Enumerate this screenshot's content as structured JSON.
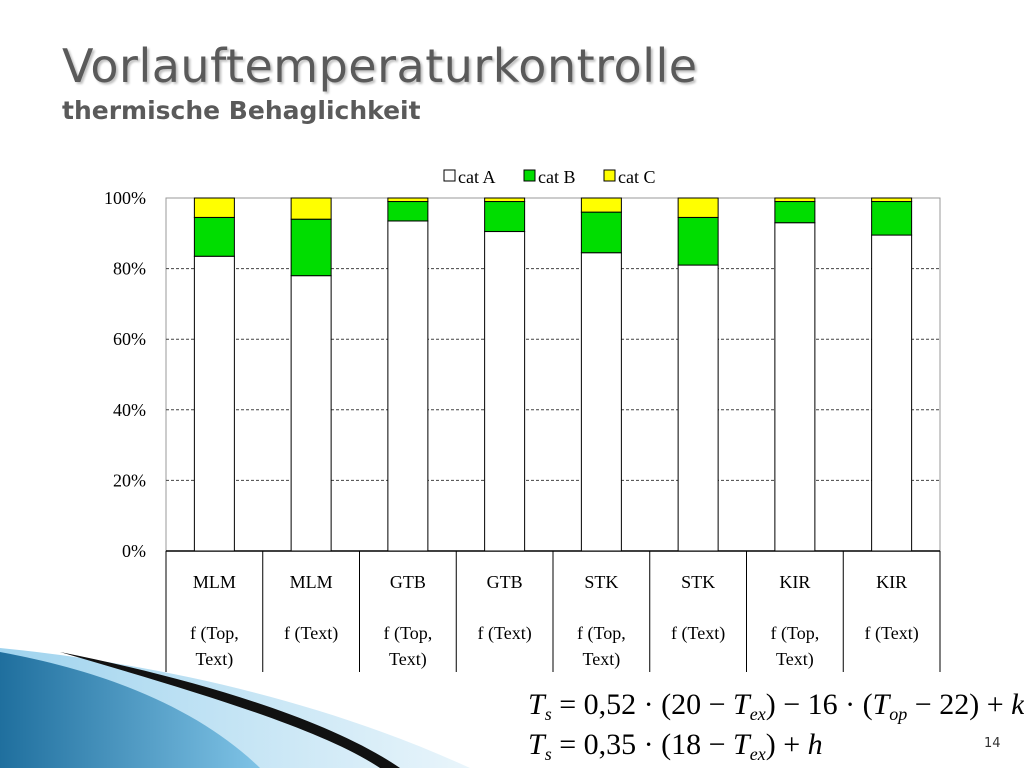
{
  "slide": {
    "title": "Vorlauftemperaturkontrolle",
    "subtitle": "thermische Behaglichkeit",
    "page_number": "14"
  },
  "formulas": {
    "f1": {
      "lhs": "T",
      "lhs_sub": "s",
      "body": [
        {
          "t": " = 0,52 · (20 − "
        },
        {
          "i": "T"
        },
        {
          "sub": "ex"
        },
        {
          "t": ") − 16 · ("
        },
        {
          "i": "T"
        },
        {
          "sub": "op"
        },
        {
          "t": " − 22) + "
        },
        {
          "i": "k"
        }
      ]
    },
    "f2": {
      "lhs": "T",
      "lhs_sub": "s",
      "body": [
        {
          "t": " = 0,35 · (18 − "
        },
        {
          "i": "T"
        },
        {
          "sub": "ex"
        },
        {
          "t": ") + "
        },
        {
          "i": "h"
        }
      ]
    }
  },
  "chart_data": {
    "type": "bar",
    "stacked": true,
    "percent": true,
    "categories": [
      [
        "MLM",
        "f (Top,",
        "Text)"
      ],
      [
        "MLM",
        "f (Text)",
        ""
      ],
      [
        "GTB",
        "f (Top,",
        "Text)"
      ],
      [
        "GTB",
        "f (Text)",
        ""
      ],
      [
        "STK",
        "f (Top,",
        "Text)"
      ],
      [
        "STK",
        "f (Text)",
        ""
      ],
      [
        "KIR",
        "f (Top,",
        "Text)"
      ],
      [
        "KIR",
        "f (Text)",
        ""
      ]
    ],
    "series": [
      {
        "name": "cat A",
        "color": "#ffffff",
        "values": [
          83.5,
          78,
          93.5,
          90.5,
          84.5,
          81,
          93,
          89.5
        ]
      },
      {
        "name": "cat B",
        "color": "#00dd00",
        "values": [
          11,
          16,
          5.5,
          8.5,
          11.5,
          13.5,
          6,
          9.5
        ]
      },
      {
        "name": "cat C",
        "color": "#ffff00",
        "values": [
          5.5,
          6,
          1,
          1,
          4,
          5.5,
          1,
          1
        ]
      }
    ],
    "ylim": [
      0,
      100
    ],
    "yticks": [
      "0%",
      "20%",
      "40%",
      "60%",
      "80%",
      "100%"
    ],
    "grid": true,
    "legend": "top"
  }
}
